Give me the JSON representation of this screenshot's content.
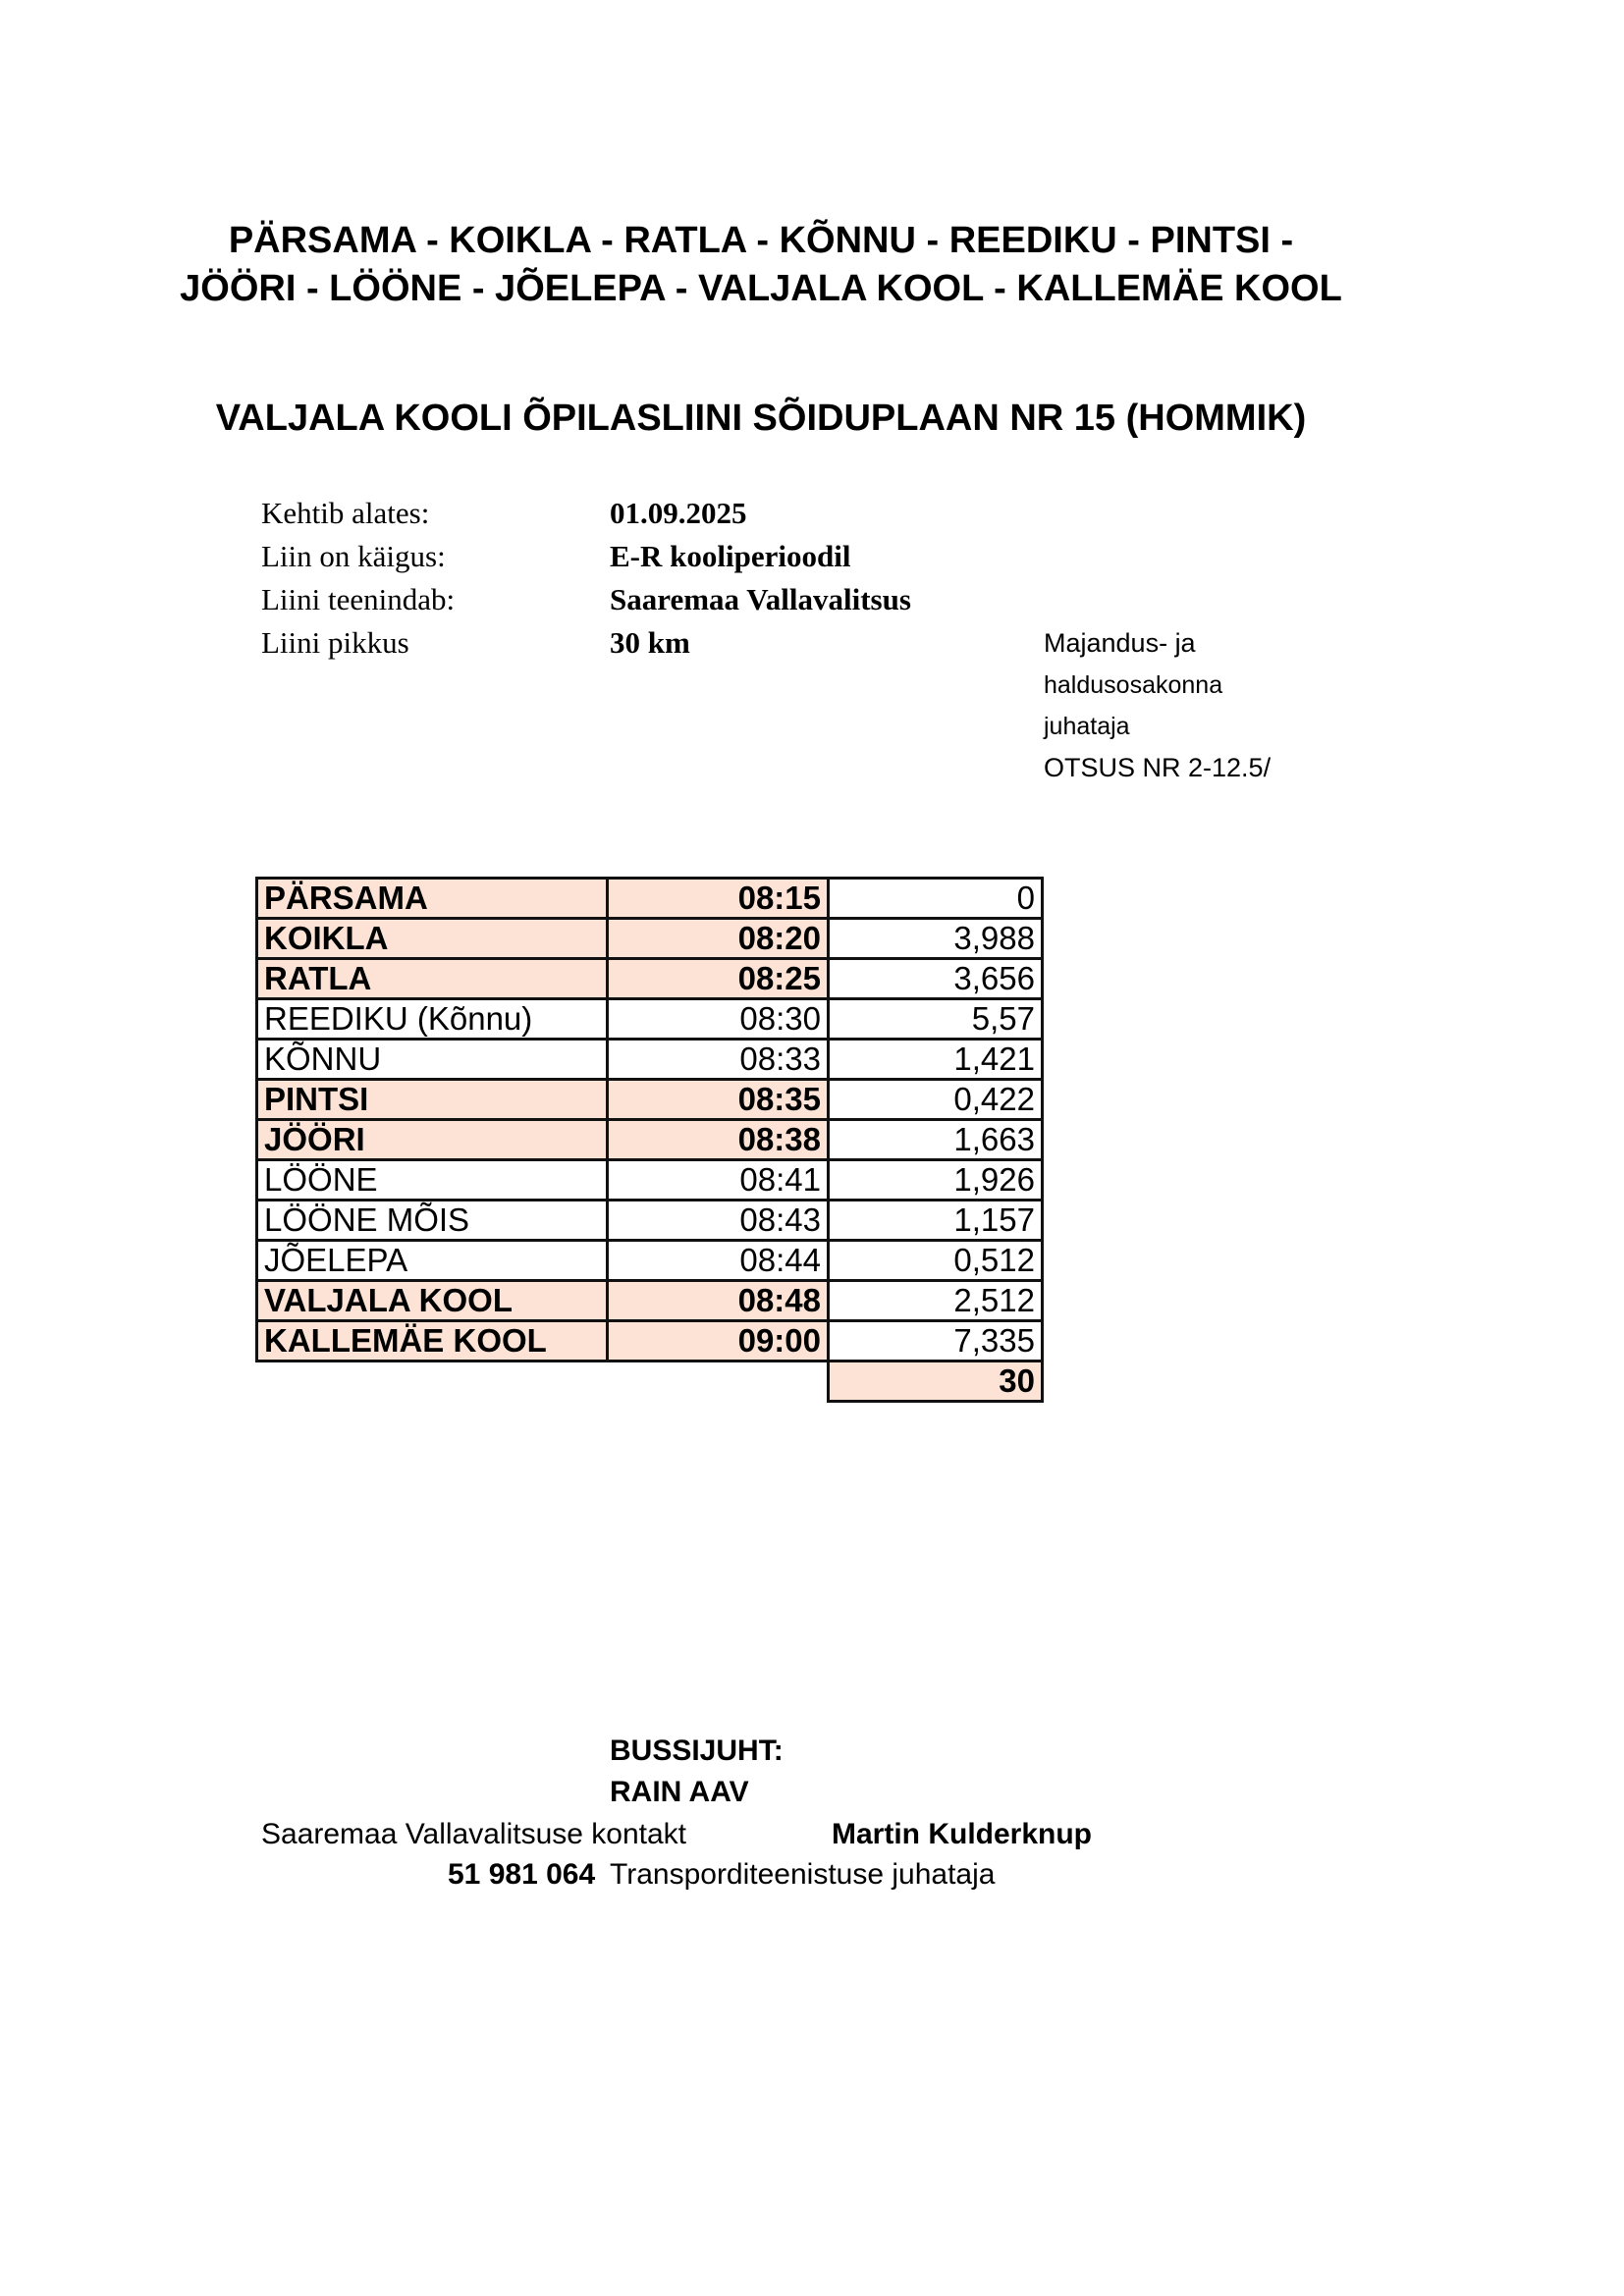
{
  "header": {
    "route_line1": "PÄRSAMA - KOIKLA - RATLA  - KÕNNU - REEDIKU - PINTSI -",
    "route_line2": "JÖÖRI - LÖÖNE - JÕELEPA - VALJALA KOOL - KALLEMÄE KOOL",
    "schedule_title": "VALJALA KOOLI  ÕPILASLIINI SÕIDUPLAAN   NR 15   (HOMMIK)"
  },
  "info": [
    {
      "label": "Kehtib alates:",
      "value": "01.09.2025"
    },
    {
      "label": "Liin on käigus:",
      "value": "E-R kooliperioodil"
    },
    {
      "label": "Liini teenindab:",
      "value": "Saaremaa Vallavalitsus"
    },
    {
      "label": "Liini pikkus",
      "value": "30 km"
    }
  ],
  "decision_note": [
    "Majandus- ja",
    "haldusosakonna",
    "juhataja",
    "OTSUS NR 2-12.5/"
  ],
  "highlight_color": "#fce3d6",
  "stops": [
    {
      "name": "PÄRSAMA",
      "time": "08:15",
      "distance": "0",
      "highlight": true
    },
    {
      "name": "KOIKLA",
      "time": "08:20",
      "distance": "3,988",
      "highlight": true
    },
    {
      "name": "RATLA",
      "time": "08:25",
      "distance": "3,656",
      "highlight": true
    },
    {
      "name": "REEDIKU (Kõnnu)",
      "time": "08:30",
      "distance": "5,57",
      "highlight": false
    },
    {
      "name": "KÕNNU",
      "time": "08:33",
      "distance": "1,421",
      "highlight": false
    },
    {
      "name": "PINTSI",
      "time": "08:35",
      "distance": "0,422",
      "highlight": true
    },
    {
      "name": "JÖÖRI",
      "time": "08:38",
      "distance": "1,663",
      "highlight": true
    },
    {
      "name": "LÖÖNE",
      "time": "08:41",
      "distance": "1,926",
      "highlight": false
    },
    {
      "name": "LÖÖNE MÕIS",
      "time": "08:43",
      "distance": "1,157",
      "highlight": false
    },
    {
      "name": "JÕELEPA",
      "time": "08:44",
      "distance": "0,512",
      "highlight": false
    },
    {
      "name": "VALJALA KOOL",
      "time": "08:48",
      "distance": "2,512",
      "highlight": true
    },
    {
      "name": "KALLEMÄE KOOL",
      "time": "09:00",
      "distance": "7,335",
      "highlight": true
    }
  ],
  "total_distance": "30",
  "footer": {
    "driver_label": "BUSSIJUHT:",
    "driver_name": "RAIN AAV",
    "contact_label": "Saaremaa Vallavalitsuse kontakt",
    "contact_name": "Martin Kulderknup",
    "contact_phone": "51 981 064",
    "contact_role": "Transporditeenistuse juhataja"
  }
}
